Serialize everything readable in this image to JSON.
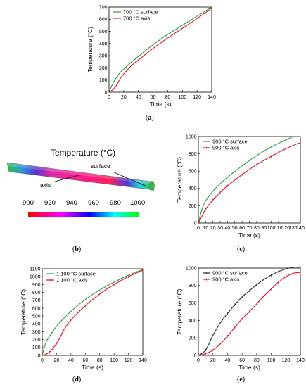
{
  "panels": {
    "a": {
      "label_open": "(",
      "label_letter": "a",
      "label_close": ")"
    },
    "b": {
      "label_open": "(",
      "label_letter": "b",
      "label_close": ")"
    },
    "c": {
      "label_open": "(",
      "label_letter": "c",
      "label_close": ")"
    },
    "d": {
      "label_open": "(",
      "label_letter": "d",
      "label_close": ")"
    },
    "e": {
      "label_open": "(",
      "label_letter": "e",
      "label_close": ")"
    }
  },
  "rod": {
    "title": "Temperature (°C)",
    "surface_label": "surface",
    "axis_label": "axis",
    "colorbar_ticks": [
      "900",
      "920",
      "940",
      "960",
      "980",
      "1000"
    ],
    "colors": [
      "#ff0000",
      "#ff00ff",
      "#0000ff",
      "#00ffff",
      "#00ff00"
    ]
  },
  "chart_data": [
    {
      "id": "a",
      "type": "line",
      "xlabel": "Time (s)",
      "ylabel": "Temperature (°C)",
      "xlim": [
        0,
        140
      ],
      "ylim": [
        0,
        700
      ],
      "xticks": [
        0,
        20,
        40,
        60,
        80,
        100,
        120,
        140
      ],
      "yticks": [
        0,
        100,
        200,
        300,
        400,
        500,
        600,
        700
      ],
      "legend": "top-left",
      "series": [
        {
          "name": "700 °C surface",
          "color": "#2e9a3a",
          "markers": false,
          "x": [
            0,
            5,
            10,
            15,
            20,
            30,
            40,
            60,
            80,
            100,
            120,
            140
          ],
          "y": [
            0,
            70,
            120,
            160,
            190,
            245,
            295,
            390,
            475,
            550,
            625,
            700
          ]
        },
        {
          "name": "700 °C axis",
          "color": "#e0112b",
          "markers": false,
          "x": [
            0,
            5,
            10,
            15,
            20,
            30,
            40,
            60,
            80,
            100,
            120,
            140
          ],
          "y": [
            0,
            20,
            55,
            110,
            150,
            215,
            265,
            360,
            445,
            525,
            605,
            690
          ]
        }
      ]
    },
    {
      "id": "c",
      "type": "line",
      "xlabel": "Time (s)",
      "ylabel": "Temperature (°C)",
      "xlim": [
        0,
        140
      ],
      "ylim": [
        0,
        1000
      ],
      "xticks": [
        0,
        10,
        20,
        30,
        40,
        50,
        60,
        70,
        80,
        90,
        100,
        110,
        120,
        130,
        140
      ],
      "yticks": [
        0,
        200,
        400,
        600,
        800,
        1000
      ],
      "legend": "top-left",
      "series": [
        {
          "name": "900 °C surface",
          "color": "#2e9a3a",
          "markers": false,
          "x": [
            0,
            5,
            10,
            20,
            30,
            40,
            60,
            80,
            100,
            120,
            130
          ],
          "y": [
            0,
            160,
            255,
            370,
            455,
            530,
            660,
            780,
            880,
            960,
            1000
          ]
        },
        {
          "name": "900 °C axis",
          "color": "#e0112b",
          "markers": true,
          "x": [
            0,
            5,
            10,
            20,
            30,
            40,
            60,
            80,
            100,
            120,
            140
          ],
          "y": [
            0,
            80,
            160,
            265,
            355,
            430,
            560,
            675,
            770,
            860,
            930
          ]
        }
      ]
    },
    {
      "id": "d",
      "type": "line",
      "xlabel": "Time (s)",
      "ylabel": "Temperature (°C)",
      "xlim": [
        0,
        140
      ],
      "ylim": [
        0,
        1100
      ],
      "xticks": [
        0,
        20,
        40,
        60,
        80,
        100,
        120,
        140
      ],
      "yticks": [
        0,
        100,
        200,
        300,
        400,
        500,
        600,
        700,
        800,
        900,
        1000,
        1100
      ],
      "legend": "top-left",
      "series": [
        {
          "name": "1 100 °C surface",
          "color": "#2e9a3a",
          "markers": false,
          "x": [
            0,
            5,
            10,
            20,
            30,
            40,
            60,
            80,
            100,
            120,
            140
          ],
          "y": [
            0,
            160,
            240,
            370,
            470,
            560,
            710,
            830,
            930,
            1020,
            1090
          ]
        },
        {
          "name": "1 100 °C axis",
          "color": "#e0112b",
          "markers": true,
          "x": [
            0,
            5,
            10,
            15,
            20,
            25,
            30,
            40,
            60,
            80,
            100,
            120,
            140
          ],
          "y": [
            0,
            15,
            40,
            90,
            150,
            230,
            320,
            450,
            630,
            780,
            900,
            1000,
            1080
          ]
        }
      ]
    },
    {
      "id": "e",
      "type": "line",
      "xlabel": "Time (s)",
      "ylabel": "Temperature (°C)",
      "xlim": [
        0,
        140
      ],
      "ylim": [
        0,
        1000
      ],
      "xticks": [
        0,
        20,
        40,
        60,
        80,
        100,
        120,
        140
      ],
      "yticks": [
        0,
        200,
        400,
        600,
        800,
        1000
      ],
      "legend": "top-left",
      "series": [
        {
          "name": "900 °C surface",
          "color": "#2b2b2b",
          "markers": true,
          "x": [
            0,
            10,
            20,
            30,
            40,
            50,
            60,
            70,
            80,
            90,
            100,
            110,
            120,
            130,
            140
          ],
          "y": [
            0,
            60,
            230,
            370,
            480,
            580,
            670,
            740,
            810,
            870,
            920,
            960,
            990,
            1010,
            1010
          ]
        },
        {
          "name": "900 °C axis",
          "color": "#e0112b",
          "markers": true,
          "x": [
            0,
            10,
            20,
            30,
            40,
            50,
            60,
            70,
            80,
            90,
            100,
            110,
            120,
            130,
            140
          ],
          "y": [
            0,
            20,
            60,
            130,
            220,
            320,
            420,
            500,
            590,
            680,
            760,
            840,
            900,
            940,
            950
          ]
        }
      ]
    }
  ]
}
